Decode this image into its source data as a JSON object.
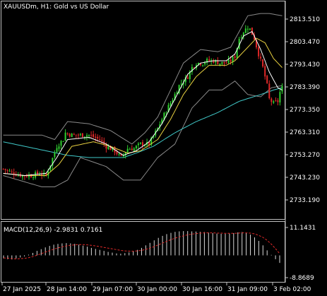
{
  "window_title": "XAUUSDm, H1:  Gold vs US Dollar",
  "colors": {
    "background": "#000000",
    "frame": "#c0c0c0",
    "bull_candle": "#2fd12f",
    "bear_candle": "#e02828",
    "bands": "#8a8a8a",
    "ma_fast": "#ffffff",
    "ma_slow": "#e8d040",
    "ma_long": "#40c8c8",
    "macd_hist": "#d8d8d8",
    "macd_signal": "#e02828",
    "text": "#ffffff"
  },
  "chart_data": [
    {
      "type": "candlestick",
      "title": "XAUUSDm, H1:  Gold vs US Dollar",
      "y_ticks": [
        "2813.510",
        "2803.470",
        "2793.430",
        "2783.390",
        "2773.350",
        "2763.310",
        "2753.270",
        "2743.230",
        "2733.190"
      ],
      "ylim": [
        2728.0,
        2818.0
      ],
      "x_ticks": [
        "27 Jan 2025",
        "28 Jan 14:00",
        "29 Jan 07:00",
        "30 Jan 00:00",
        "30 Jan 16:00",
        "31 Jan 09:00",
        "3 Feb 02:00"
      ],
      "grid": false,
      "overlays": [
        "bollinger_bands",
        "moving_average_fast",
        "moving_average_slow",
        "moving_average_long"
      ],
      "close_path": [
        [
          0,
          2747
        ],
        [
          5,
          2745
        ],
        [
          9,
          2744
        ],
        [
          13,
          2744
        ],
        [
          17,
          2745
        ],
        [
          20,
          2744
        ],
        [
          22,
          2749
        ],
        [
          25,
          2757
        ],
        [
          28,
          2760
        ],
        [
          29,
          2763
        ],
        [
          32,
          2762
        ],
        [
          35,
          2762
        ],
        [
          40,
          2762
        ],
        [
          45,
          2760
        ],
        [
          48,
          2757
        ],
        [
          52,
          2755
        ],
        [
          55,
          2752
        ],
        [
          58,
          2756
        ],
        [
          61,
          2756
        ],
        [
          64,
          2758
        ],
        [
          68,
          2758
        ],
        [
          72,
          2765
        ],
        [
          76,
          2773
        ],
        [
          79,
          2778
        ],
        [
          82,
          2784
        ],
        [
          86,
          2788
        ],
        [
          88,
          2792
        ],
        [
          90,
          2794
        ],
        [
          93,
          2794
        ],
        [
          95,
          2795
        ],
        [
          98,
          2795
        ],
        [
          101,
          2794
        ],
        [
          104,
          2794
        ],
        [
          106,
          2795
        ],
        [
          108,
          2797
        ],
        [
          110,
          2805
        ],
        [
          112,
          2808
        ],
        [
          114,
          2810
        ],
        [
          115,
          2809
        ],
        [
          117,
          2805
        ],
        [
          119,
          2798
        ],
        [
          121,
          2792
        ],
        [
          123,
          2784
        ],
        [
          124,
          2778
        ],
        [
          126,
          2776
        ],
        [
          128,
          2777
        ],
        [
          129,
          2781
        ],
        [
          130,
          2783
        ]
      ],
      "bollinger_upper": [
        [
          0,
          2762
        ],
        [
          18,
          2762
        ],
        [
          24,
          2760
        ],
        [
          30,
          2768
        ],
        [
          40,
          2767
        ],
        [
          50,
          2764
        ],
        [
          60,
          2758
        ],
        [
          66,
          2763
        ],
        [
          72,
          2770
        ],
        [
          78,
          2782
        ],
        [
          84,
          2794
        ],
        [
          92,
          2800
        ],
        [
          100,
          2799
        ],
        [
          106,
          2801
        ],
        [
          110,
          2808
        ],
        [
          114,
          2815
        ],
        [
          120,
          2816
        ],
        [
          124,
          2816
        ],
        [
          130,
          2815
        ]
      ],
      "bollinger_lower": [
        [
          0,
          2744
        ],
        [
          18,
          2739
        ],
        [
          24,
          2739
        ],
        [
          30,
          2742
        ],
        [
          36,
          2752
        ],
        [
          48,
          2748
        ],
        [
          56,
          2742
        ],
        [
          64,
          2742
        ],
        [
          72,
          2752
        ],
        [
          80,
          2758
        ],
        [
          88,
          2774
        ],
        [
          96,
          2782
        ],
        [
          102,
          2782
        ],
        [
          108,
          2786
        ],
        [
          114,
          2780
        ],
        [
          120,
          2779
        ],
        [
          125,
          2783
        ],
        [
          130,
          2784
        ]
      ],
      "ma_fast": [
        [
          0,
          2745
        ],
        [
          10,
          2744
        ],
        [
          20,
          2745
        ],
        [
          25,
          2752
        ],
        [
          30,
          2760
        ],
        [
          40,
          2761
        ],
        [
          48,
          2758
        ],
        [
          56,
          2753
        ],
        [
          62,
          2755
        ],
        [
          68,
          2759
        ],
        [
          74,
          2767
        ],
        [
          80,
          2778
        ],
        [
          86,
          2789
        ],
        [
          92,
          2794
        ],
        [
          98,
          2795
        ],
        [
          104,
          2795
        ],
        [
          108,
          2798
        ],
        [
          112,
          2806
        ],
        [
          116,
          2808
        ],
        [
          120,
          2800
        ],
        [
          124,
          2790
        ],
        [
          128,
          2783
        ],
        [
          130,
          2782
        ]
      ],
      "ma_slow": [
        [
          0,
          2745
        ],
        [
          10,
          2744
        ],
        [
          20,
          2744
        ],
        [
          26,
          2749
        ],
        [
          32,
          2757
        ],
        [
          42,
          2759
        ],
        [
          50,
          2757
        ],
        [
          58,
          2754
        ],
        [
          64,
          2755
        ],
        [
          72,
          2760
        ],
        [
          78,
          2769
        ],
        [
          84,
          2780
        ],
        [
          90,
          2788
        ],
        [
          96,
          2793
        ],
        [
          104,
          2793
        ],
        [
          108,
          2795
        ],
        [
          114,
          2801
        ],
        [
          118,
          2805
        ],
        [
          122,
          2803
        ],
        [
          126,
          2796
        ],
        [
          130,
          2792
        ]
      ],
      "ma_long": [
        [
          0,
          2759
        ],
        [
          10,
          2757
        ],
        [
          20,
          2755
        ],
        [
          30,
          2753
        ],
        [
          40,
          2752
        ],
        [
          50,
          2752
        ],
        [
          56,
          2752
        ],
        [
          62,
          2754
        ],
        [
          70,
          2757
        ],
        [
          80,
          2763
        ],
        [
          90,
          2768
        ],
        [
          100,
          2772
        ],
        [
          110,
          2777
        ],
        [
          120,
          2780
        ],
        [
          126,
          2782
        ],
        [
          130,
          2783
        ]
      ]
    },
    {
      "type": "bar",
      "title": "MACD(12,26,9) -2.9831 0.7161",
      "y_ticks": [
        "11.1431",
        "-8.8689"
      ],
      "ylim": [
        -9.5,
        11.8
      ],
      "series": [
        {
          "name": "main",
          "values": [
            -1.2,
            -1.5,
            -1.6,
            -1.2,
            -0.8,
            -0.4,
            0.3,
            1.0,
            1.8,
            2.5,
            3.2,
            3.8,
            4.3,
            4.6,
            4.8,
            4.9,
            4.8,
            4.6,
            4.3,
            3.9,
            3.5,
            3.0,
            2.6,
            2.2,
            1.8,
            1.4,
            1.1,
            0.8,
            0.7,
            0.9,
            1.2,
            1.6,
            2.2,
            3.0,
            4.0,
            5.0,
            6.0,
            7.0,
            7.8,
            8.5,
            9.0,
            9.4,
            9.6,
            9.7,
            9.7,
            9.6,
            9.5,
            9.4,
            9.3,
            9.1,
            8.9,
            8.7,
            8.6,
            8.6,
            8.7,
            8.9,
            9.2,
            9.3,
            9.0,
            8.3,
            7.2,
            5.8,
            4.0,
            2.0,
            0.2,
            -1.5,
            -2.9831
          ]
        },
        {
          "name": "signal",
          "values": [
            -1.0,
            -1.1,
            -1.3,
            -1.4,
            -1.3,
            -1.2,
            -0.9,
            -0.5,
            0.1,
            0.7,
            1.3,
            1.9,
            2.5,
            3.0,
            3.4,
            3.8,
            4.0,
            4.2,
            4.3,
            4.3,
            4.2,
            4.0,
            3.8,
            3.5,
            3.2,
            2.9,
            2.6,
            2.3,
            2.0,
            1.8,
            1.7,
            1.7,
            1.8,
            2.0,
            2.4,
            2.9,
            3.5,
            4.2,
            4.9,
            5.6,
            6.3,
            6.9,
            7.4,
            7.8,
            8.2,
            8.5,
            8.7,
            8.9,
            9.0,
            9.0,
            9.0,
            8.9,
            8.9,
            8.8,
            8.8,
            8.8,
            8.9,
            9.0,
            9.0,
            8.9,
            8.6,
            8.0,
            7.2,
            6.0,
            4.5,
            2.7,
            0.7161
          ]
        }
      ],
      "grid": false
    }
  ]
}
